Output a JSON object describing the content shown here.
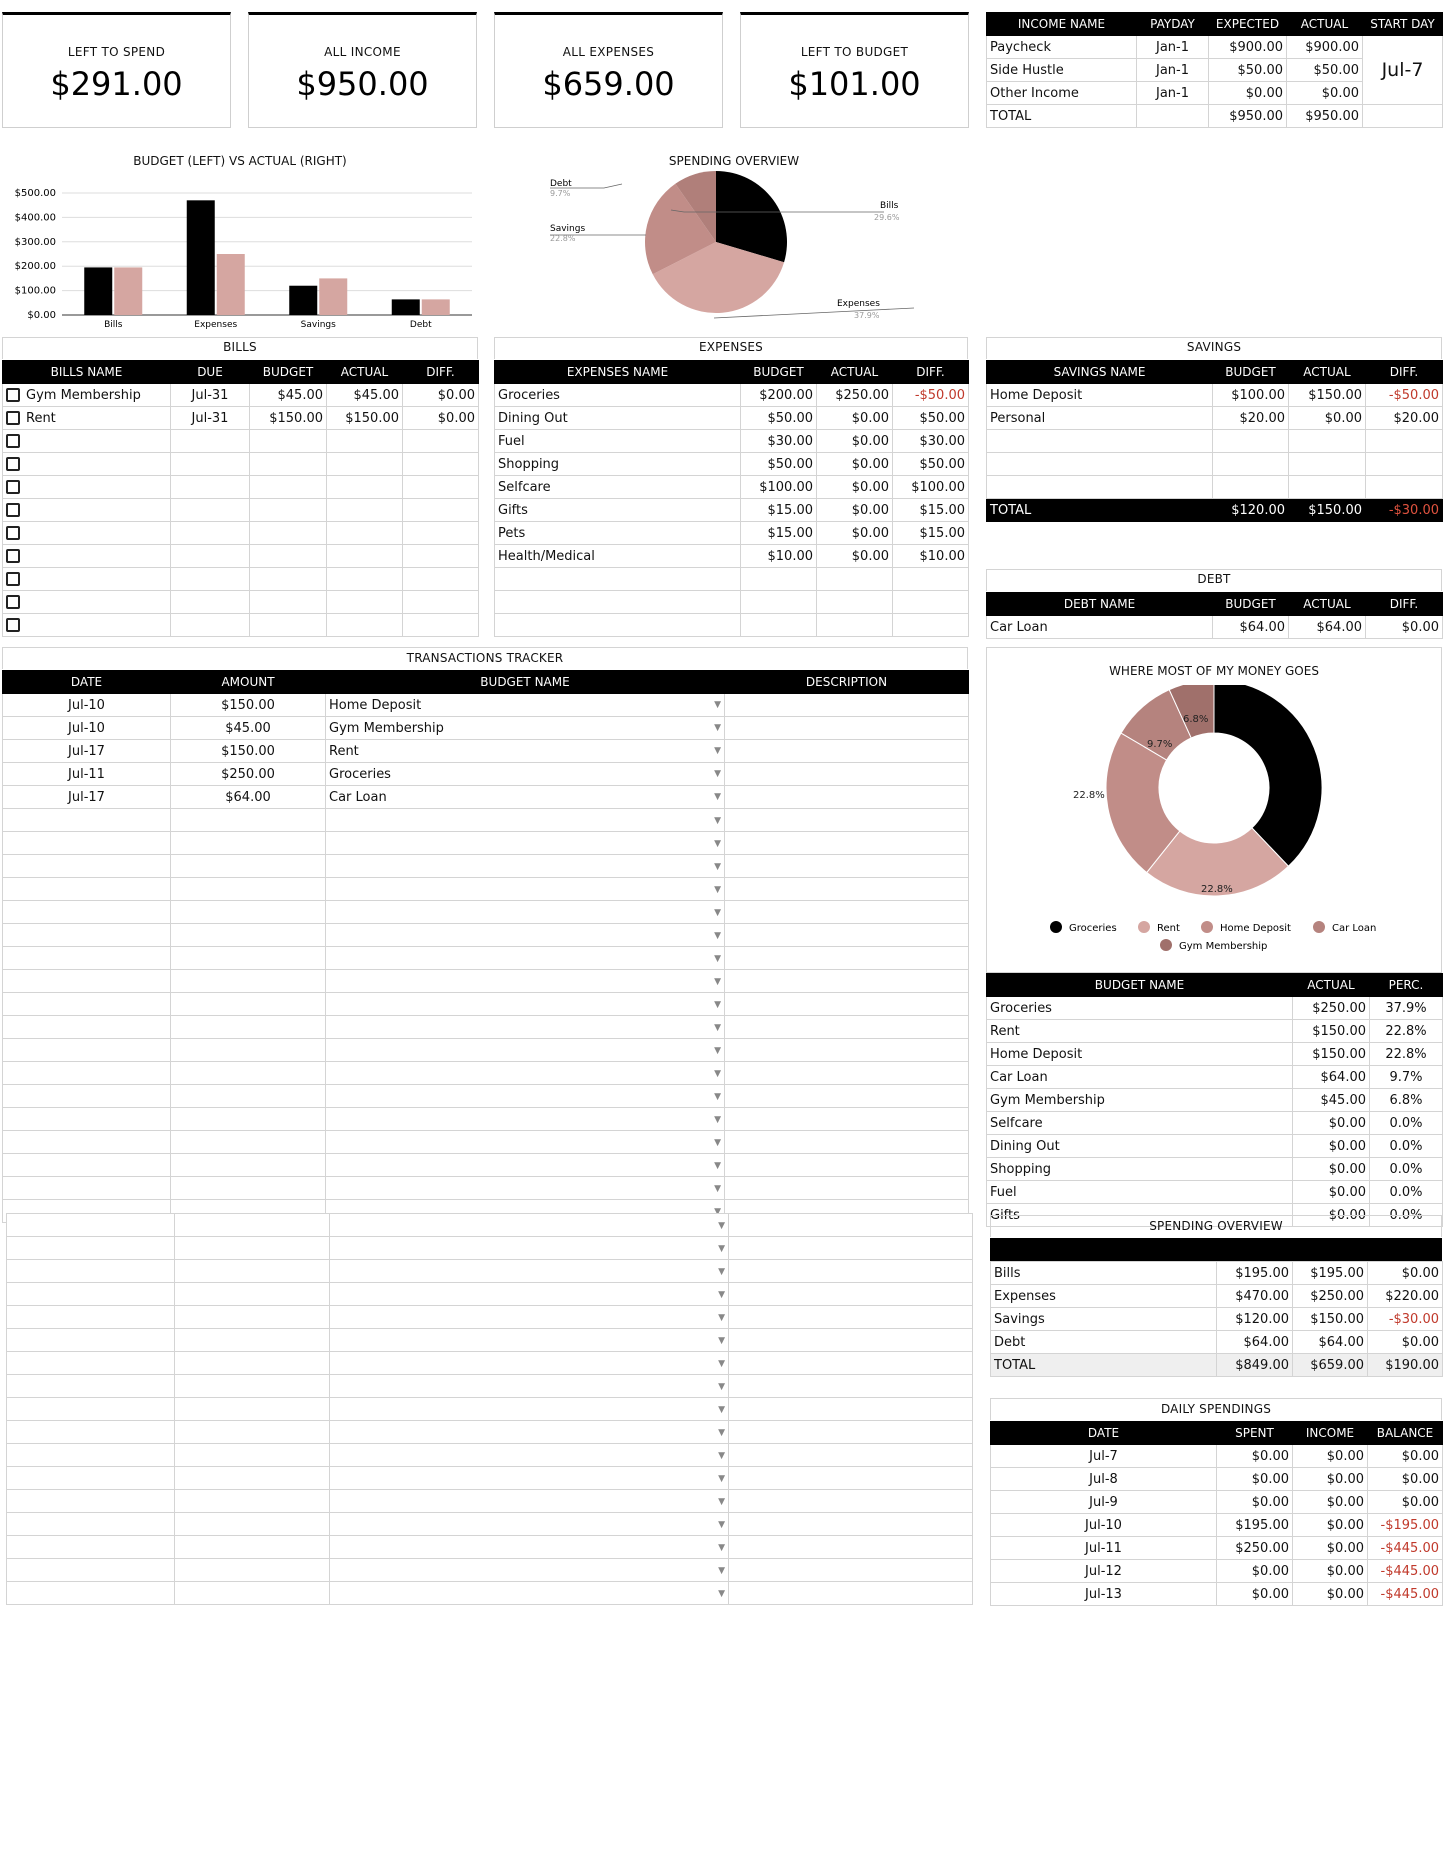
{
  "cards": [
    {
      "label": "LEFT TO SPEND",
      "value": "$291.00"
    },
    {
      "label": "ALL INCOME",
      "value": "$950.00"
    },
    {
      "label": "ALL EXPENSES",
      "value": "$659.00"
    },
    {
      "label": "LEFT TO BUDGET",
      "value": "$101.00"
    }
  ],
  "income": {
    "headers": [
      "INCOME NAME",
      "PAYDAY",
      "EXPECTED",
      "ACTUAL",
      "START DAY"
    ],
    "rows": [
      [
        "Paycheck",
        "Jan-1",
        "$900.00",
        "$900.00"
      ],
      [
        "Side Hustle",
        "Jan-1",
        "$50.00",
        "$50.00"
      ],
      [
        "Other Income",
        "Jan-1",
        "$0.00",
        "$0.00"
      ],
      [
        "TOTAL",
        "",
        "$950.00",
        "$950.00"
      ]
    ],
    "start_day": "Jul-7"
  },
  "bar_chart": {
    "title": "BUDGET (LEFT) VS ACTUAL (RIGHT)",
    "y_ticks": [
      "$500.00",
      "$400.00",
      "$300.00",
      "$200.00",
      "$100.00",
      "$0.00"
    ]
  },
  "pie_chart": {
    "title": "SPENDING OVERVIEW",
    "labels": [
      {
        "name": "Debt",
        "pct": "9.7%"
      },
      {
        "name": "Savings",
        "pct": "22.8%"
      },
      {
        "name": "Bills",
        "pct": "29.6%"
      },
      {
        "name": "Expenses",
        "pct": "37.9%"
      }
    ]
  },
  "chart_data": [
    {
      "type": "bar",
      "title": "BUDGET (LEFT) VS ACTUAL (RIGHT)",
      "categories": [
        "Bills",
        "Expenses",
        "Savings",
        "Debt"
      ],
      "series": [
        {
          "values": [
            195,
            470,
            120,
            64
          ],
          "color": "#000000"
        },
        {
          "values": [
            195,
            250,
            150,
            64
          ],
          "color": "#d5a6a1"
        }
      ],
      "ylim": [
        0,
        500
      ],
      "xlabel": "",
      "ylabel": ""
    },
    {
      "type": "pie",
      "title": "SPENDING OVERVIEW",
      "labels": [
        "Bills",
        "Expenses",
        "Savings",
        "Debt"
      ],
      "values": [
        29.6,
        37.9,
        22.8,
        9.7
      ],
      "colors": [
        "#000000",
        "#d5a6a1",
        "#c18d88",
        "#b07f7a"
      ]
    },
    {
      "type": "pie",
      "title": "WHERE MOST OF MY MONEY GOES",
      "labels": [
        "Groceries",
        "Rent",
        "Home Deposit",
        "Car Loan",
        "Gym Membership"
      ],
      "values": [
        37.9,
        22.8,
        22.8,
        9.7,
        6.8
      ],
      "colors": [
        "#000000",
        "#d5a6a1",
        "#c18d88",
        "#b5837e",
        "#a0706b"
      ]
    }
  ],
  "bills": {
    "title": "BILLS",
    "headers": [
      "BILLS NAME",
      "DUE",
      "BUDGET",
      "ACTUAL",
      "DIFF."
    ],
    "rows": [
      [
        "Gym Membership",
        "Jul-31",
        "$45.00",
        "$45.00",
        "$0.00"
      ],
      [
        "Rent",
        "Jul-31",
        "$150.00",
        "$150.00",
        "$0.00"
      ]
    ],
    "empty_rows": 9
  },
  "expenses": {
    "title": "EXPENSES",
    "headers": [
      "EXPENSES NAME",
      "BUDGET",
      "ACTUAL",
      "DIFF."
    ],
    "rows": [
      [
        "Groceries",
        "$200.00",
        "$250.00",
        "-$50.00"
      ],
      [
        "Dining Out",
        "$50.00",
        "$0.00",
        "$50.00"
      ],
      [
        "Fuel",
        "$30.00",
        "$0.00",
        "$30.00"
      ],
      [
        "Shopping",
        "$50.00",
        "$0.00",
        "$50.00"
      ],
      [
        "Selfcare",
        "$100.00",
        "$0.00",
        "$100.00"
      ],
      [
        "Gifts",
        "$15.00",
        "$0.00",
        "$15.00"
      ],
      [
        "Pets",
        "$15.00",
        "$0.00",
        "$15.00"
      ],
      [
        "Health/Medical",
        "$10.00",
        "$0.00",
        "$10.00"
      ]
    ],
    "empty_rows": 3
  },
  "savings": {
    "title": "SAVINGS",
    "headers": [
      "SAVINGS NAME",
      "BUDGET",
      "ACTUAL",
      "DIFF."
    ],
    "rows": [
      [
        "Home Deposit",
        "$100.00",
        "$150.00",
        "-$50.00"
      ],
      [
        "Personal",
        "$20.00",
        "$0.00",
        "$20.00"
      ]
    ],
    "empty_rows": 3,
    "total": [
      "TOTAL",
      "$120.00",
      "$150.00",
      "-$30.00"
    ]
  },
  "debt": {
    "title": "DEBT",
    "headers": [
      "DEBT NAME",
      "BUDGET",
      "ACTUAL",
      "DIFF."
    ],
    "rows": [
      [
        "Car Loan",
        "$64.00",
        "$64.00",
        "$0.00"
      ]
    ]
  },
  "transactions": {
    "title": "TRANSACTIONS TRACKER",
    "headers": [
      "DATE",
      "AMOUNT",
      "BUDGET NAME",
      "DESCRIPTION"
    ],
    "rows": [
      [
        "Jul-10",
        "$150.00",
        "Home Deposit",
        ""
      ],
      [
        "Jul-10",
        "$45.00",
        "Gym Membership",
        ""
      ],
      [
        "Jul-17",
        "$150.00",
        "Rent",
        ""
      ],
      [
        "Jul-11",
        "$250.00",
        "Groceries",
        ""
      ],
      [
        "Jul-17",
        "$64.00",
        "Car Loan",
        ""
      ]
    ]
  },
  "donut": {
    "title": "WHERE MOST OF MY MONEY GOES",
    "slice_labels": [
      "22.8%",
      "22.8%",
      "9.7%",
      "6.8%"
    ],
    "legend": [
      "Groceries",
      "Rent",
      "Home Deposit",
      "Car Loan",
      "Gym Membership"
    ]
  },
  "budget_perc": {
    "headers": [
      "BUDGET NAME",
      "ACTUAL",
      "PERC."
    ],
    "rows": [
      [
        "Groceries",
        "$250.00",
        "37.9%"
      ],
      [
        "Rent",
        "$150.00",
        "22.8%"
      ],
      [
        "Home Deposit",
        "$150.00",
        "22.8%"
      ],
      [
        "Car Loan",
        "$64.00",
        "9.7%"
      ],
      [
        "Gym Membership",
        "$45.00",
        "6.8%"
      ],
      [
        "Selfcare",
        "$0.00",
        "0.0%"
      ],
      [
        "Dining Out",
        "$0.00",
        "0.0%"
      ],
      [
        "Shopping",
        "$0.00",
        "0.0%"
      ],
      [
        "Fuel",
        "$0.00",
        "0.0%"
      ],
      [
        "Gifts",
        "$0.00",
        "0.0%"
      ]
    ]
  },
  "spending_overview_table": {
    "title": "SPENDING OVERVIEW",
    "rows": [
      [
        "Bills",
        "$195.00",
        "$195.00",
        "$0.00"
      ],
      [
        "Expenses",
        "$470.00",
        "$250.00",
        "$220.00"
      ],
      [
        "Savings",
        "$120.00",
        "$150.00",
        "-$30.00"
      ],
      [
        "Debt",
        "$64.00",
        "$64.00",
        "$0.00"
      ],
      [
        "TOTAL",
        "$849.00",
        "$659.00",
        "$190.00"
      ]
    ]
  },
  "daily": {
    "title": "DAILY SPENDINGS",
    "headers": [
      "DATE",
      "SPENT",
      "INCOME",
      "BALANCE"
    ],
    "rows": [
      [
        "Jul-7",
        "$0.00",
        "$0.00",
        "$0.00"
      ],
      [
        "Jul-8",
        "$0.00",
        "$0.00",
        "$0.00"
      ],
      [
        "Jul-9",
        "$0.00",
        "$0.00",
        "$0.00"
      ],
      [
        "Jul-10",
        "$195.00",
        "$0.00",
        "-$195.00"
      ],
      [
        "Jul-11",
        "$250.00",
        "$0.00",
        "-$445.00"
      ],
      [
        "Jul-12",
        "$0.00",
        "$0.00",
        "-$445.00"
      ],
      [
        "Jul-13",
        "$0.00",
        "$0.00",
        "-$445.00"
      ]
    ]
  }
}
